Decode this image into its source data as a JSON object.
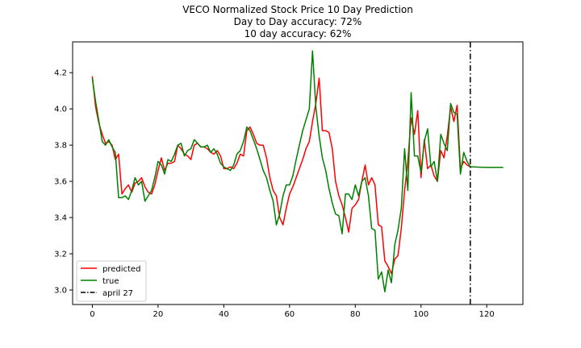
{
  "chart_data": {
    "type": "line",
    "title_lines": [
      "VECO Normalized Stock Price 10 Day Prediction",
      "Day to Day accuracy: 72%",
      "10 day accuracy: 62%"
    ],
    "xlim": [
      -6,
      131
    ],
    "ylim": [
      2.92,
      4.37
    ],
    "x_ticks": [
      0,
      20,
      40,
      60,
      80,
      100,
      120
    ],
    "y_ticks": [
      3.0,
      3.2,
      3.4,
      3.6,
      3.8,
      4.0,
      4.2
    ],
    "grid": false,
    "legend_position": "lower-left",
    "vline": {
      "x": 115,
      "label": "april 27",
      "color": "#000000",
      "style": "dash-dot"
    },
    "series": [
      {
        "name": "predicted",
        "color": "#ff0000",
        "x": [
          0,
          1,
          2,
          3,
          4,
          5,
          6,
          7,
          8,
          9,
          10,
          11,
          12,
          13,
          14,
          15,
          16,
          17,
          18,
          19,
          20,
          21,
          22,
          23,
          24,
          25,
          26,
          27,
          28,
          29,
          30,
          31,
          32,
          33,
          34,
          35,
          36,
          37,
          38,
          39,
          40,
          41,
          42,
          43,
          44,
          45,
          46,
          47,
          48,
          49,
          50,
          51,
          52,
          53,
          54,
          55,
          56,
          57,
          58,
          59,
          60,
          61,
          62,
          63,
          64,
          65,
          66,
          67,
          68,
          69,
          70,
          71,
          72,
          73,
          74,
          75,
          76,
          77,
          78,
          79,
          80,
          81,
          82,
          83,
          84,
          85,
          86,
          87,
          88,
          89,
          90,
          91,
          92,
          93,
          94,
          95,
          96,
          97,
          98,
          99,
          100,
          101,
          102,
          103,
          104,
          105,
          106,
          107,
          108,
          109,
          110,
          111,
          112,
          113,
          114,
          115
        ],
        "values": [
          4.18,
          4.01,
          3.92,
          3.86,
          3.81,
          3.82,
          3.8,
          3.72,
          3.75,
          3.53,
          3.56,
          3.58,
          3.54,
          3.59,
          3.6,
          3.62,
          3.57,
          3.54,
          3.53,
          3.58,
          3.66,
          3.73,
          3.66,
          3.7,
          3.7,
          3.71,
          3.8,
          3.78,
          3.75,
          3.74,
          3.72,
          3.8,
          3.81,
          3.79,
          3.79,
          3.78,
          3.76,
          3.75,
          3.77,
          3.74,
          3.67,
          3.67,
          3.68,
          3.67,
          3.7,
          3.75,
          3.74,
          3.88,
          3.9,
          3.86,
          3.81,
          3.8,
          3.8,
          3.73,
          3.62,
          3.55,
          3.52,
          3.4,
          3.36,
          3.45,
          3.53,
          3.57,
          3.62,
          3.67,
          3.72,
          3.78,
          3.82,
          3.93,
          4.03,
          4.17,
          3.88,
          3.88,
          3.87,
          3.78,
          3.6,
          3.52,
          3.47,
          3.4,
          3.32,
          3.45,
          3.47,
          3.5,
          3.6,
          3.69,
          3.58,
          3.62,
          3.58,
          3.36,
          3.35,
          3.16,
          3.13,
          3.09,
          3.17,
          3.19,
          3.34,
          3.55,
          3.71,
          3.95,
          3.86,
          3.99,
          3.62,
          3.83,
          3.67,
          3.69,
          3.63,
          3.6,
          3.77,
          3.73,
          3.85,
          4.01,
          3.93,
          4.02,
          3.67,
          3.71,
          3.69,
          3.68
        ]
      },
      {
        "name": "true",
        "color": "#008000",
        "x": [
          0,
          1,
          2,
          3,
          4,
          5,
          6,
          7,
          8,
          9,
          10,
          11,
          12,
          13,
          14,
          15,
          16,
          17,
          18,
          19,
          20,
          21,
          22,
          23,
          24,
          25,
          26,
          27,
          28,
          29,
          30,
          31,
          32,
          33,
          34,
          35,
          36,
          37,
          38,
          39,
          40,
          41,
          42,
          43,
          44,
          45,
          46,
          47,
          48,
          49,
          50,
          51,
          52,
          53,
          54,
          55,
          56,
          57,
          58,
          59,
          60,
          61,
          62,
          63,
          64,
          65,
          66,
          67,
          68,
          69,
          70,
          71,
          72,
          73,
          74,
          75,
          76,
          77,
          78,
          79,
          80,
          81,
          82,
          83,
          84,
          85,
          86,
          87,
          88,
          89,
          90,
          91,
          92,
          93,
          94,
          95,
          96,
          97,
          98,
          99,
          100,
          101,
          102,
          103,
          104,
          105,
          106,
          107,
          108,
          109,
          110,
          111,
          112,
          113,
          114,
          115,
          116,
          117,
          118,
          119,
          120,
          121,
          122,
          123,
          124,
          125
        ],
        "values": [
          4.17,
          4.04,
          3.93,
          3.82,
          3.8,
          3.83,
          3.79,
          3.76,
          3.51,
          3.51,
          3.52,
          3.5,
          3.55,
          3.62,
          3.58,
          3.6,
          3.49,
          3.52,
          3.55,
          3.62,
          3.71,
          3.69,
          3.64,
          3.72,
          3.71,
          3.75,
          3.8,
          3.81,
          3.74,
          3.77,
          3.78,
          3.83,
          3.81,
          3.79,
          3.79,
          3.8,
          3.76,
          3.78,
          3.75,
          3.7,
          3.68,
          3.67,
          3.66,
          3.69,
          3.75,
          3.77,
          3.82,
          3.9,
          3.88,
          3.83,
          3.78,
          3.72,
          3.66,
          3.62,
          3.55,
          3.49,
          3.36,
          3.42,
          3.52,
          3.58,
          3.58,
          3.63,
          3.72,
          3.8,
          3.88,
          3.94,
          4.0,
          4.32,
          4.01,
          3.85,
          3.73,
          3.66,
          3.56,
          3.48,
          3.42,
          3.41,
          3.31,
          3.53,
          3.53,
          3.5,
          3.58,
          3.52,
          3.6,
          3.62,
          3.52,
          3.34,
          3.33,
          3.06,
          3.1,
          2.99,
          3.11,
          3.04,
          3.25,
          3.33,
          3.45,
          3.78,
          3.55,
          4.09,
          3.74,
          3.74,
          3.65,
          3.82,
          3.89,
          3.68,
          3.71,
          3.6,
          3.86,
          3.81,
          3.77,
          4.03,
          3.98,
          3.97,
          3.64,
          3.76,
          3.71,
          3.68,
          3.68,
          3.679,
          3.678,
          3.678,
          3.677,
          3.677,
          3.677,
          3.677,
          3.677,
          3.677
        ]
      }
    ]
  }
}
